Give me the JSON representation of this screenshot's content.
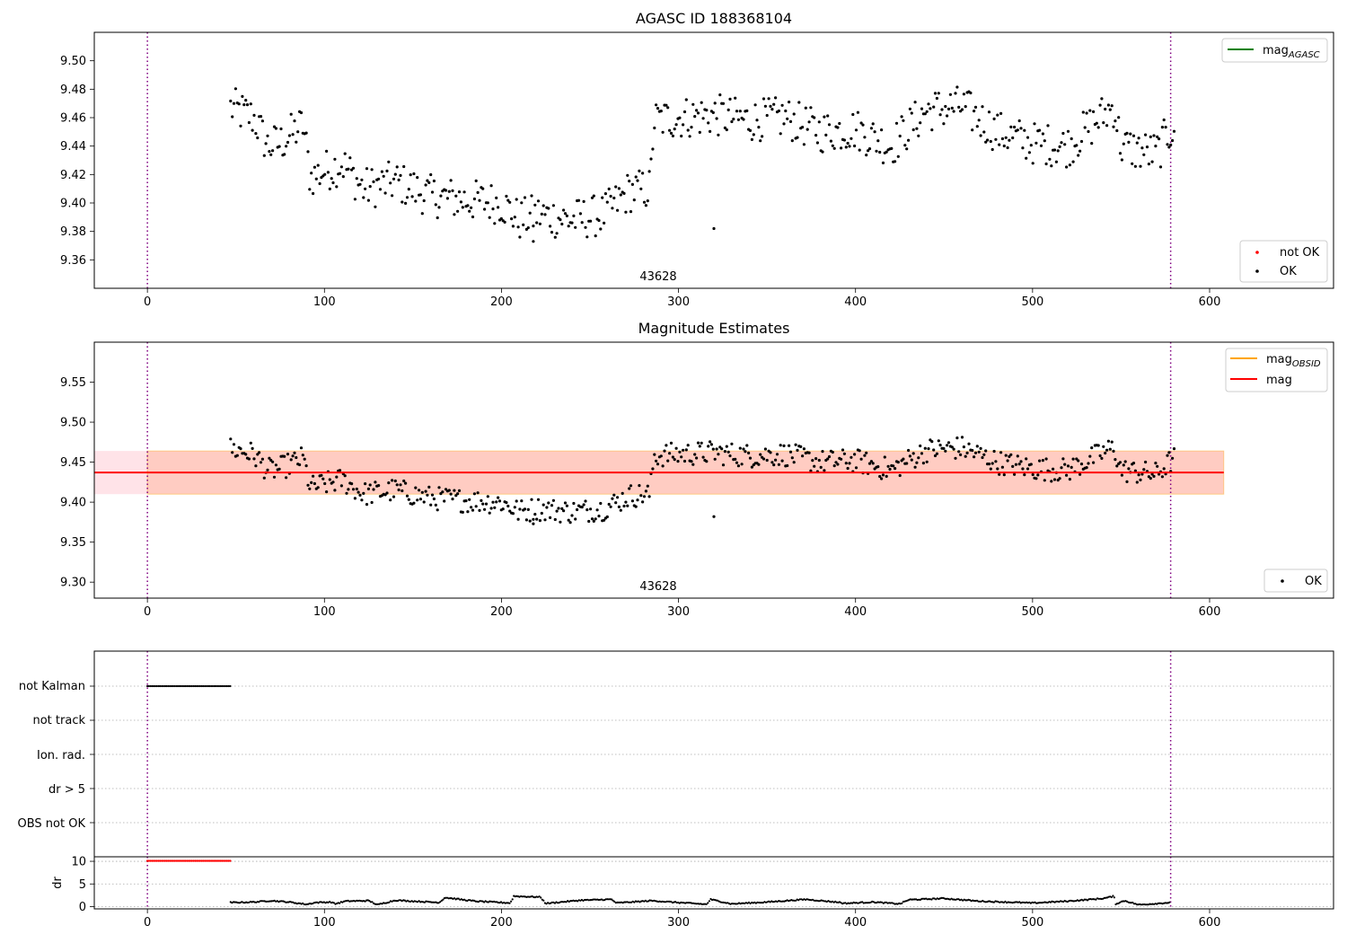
{
  "figure": {
    "panels": {
      "top": {
        "title": "AGASC ID 188368104",
        "annotation": "43628",
        "legend_lines": [
          {
            "base": "mag",
            "sub": "AGASC",
            "color": "#008000"
          }
        ],
        "legend_points": [
          {
            "label": "not OK",
            "color": "#ff0000"
          },
          {
            "label": "OK",
            "color": "#000000"
          }
        ]
      },
      "mid": {
        "title": "Magnitude Estimates",
        "annotation": "43628",
        "legend_lines": [
          {
            "base": "mag",
            "sub": "OBSID",
            "color": "#ffa500"
          },
          {
            "base": "mag",
            "sub": "",
            "color": "#ff0000"
          }
        ],
        "legend_points": [
          {
            "label": "OK",
            "color": "#000000"
          }
        ]
      },
      "flags": {
        "labels": [
          "not Kalman",
          "not track",
          "Ion. rad.",
          "dr > 5",
          "OBS not OK"
        ]
      },
      "dr": {
        "ylabel": "dr"
      }
    }
  },
  "chart_data": [
    {
      "type": "scatter",
      "title": "AGASC ID 188368104",
      "xlim": [
        -30,
        670
      ],
      "ylim": [
        9.34,
        9.52
      ],
      "x_ticks": [
        0,
        100,
        200,
        300,
        400,
        500,
        600
      ],
      "y_ticks": [
        9.36,
        9.38,
        9.4,
        9.42,
        9.44,
        9.46,
        9.48,
        9.5
      ],
      "vlines": [
        0,
        578
      ],
      "legend": [
        "mag_AGASC",
        "not OK",
        "OK"
      ],
      "legend_placement": [
        "upper-right",
        "lower-right"
      ],
      "annotation": {
        "text": "43628",
        "x": 290
      },
      "series": [
        {
          "name": "OK",
          "color": "#000000",
          "segments": [
            [
              47,
              9.467
            ],
            [
              60,
              9.46
            ],
            [
              68,
              9.44
            ],
            [
              75,
              9.442
            ],
            [
              88,
              9.455
            ],
            [
              92,
              9.418
            ],
            [
              110,
              9.428
            ],
            [
              122,
              9.41
            ],
            [
              140,
              9.415
            ],
            [
              160,
              9.405
            ],
            [
              180,
              9.402
            ],
            [
              200,
              9.4
            ],
            [
              210,
              9.388
            ],
            [
              220,
              9.392
            ],
            [
              240,
              9.388
            ],
            [
              258,
              9.392
            ],
            [
              272,
              9.408
            ],
            [
              284,
              9.41
            ],
            [
              286,
              9.458
            ],
            [
              300,
              9.46
            ],
            [
              320,
              9.462
            ],
            [
              340,
              9.458
            ],
            [
              360,
              9.46
            ],
            [
              380,
              9.45
            ],
            [
              400,
              9.452
            ],
            [
              420,
              9.44
            ],
            [
              440,
              9.465
            ],
            [
              460,
              9.468
            ],
            [
              480,
              9.45
            ],
            [
              500,
              9.442
            ],
            [
              520,
              9.44
            ],
            [
              540,
              9.462
            ],
            [
              546,
              9.468
            ],
            [
              550,
              9.44
            ],
            [
              560,
              9.437
            ],
            [
              570,
              9.435
            ],
            [
              580,
              9.455
            ]
          ],
          "outliers": [
            [
              320,
              9.382
            ],
            [
              218,
              9.373
            ]
          ]
        }
      ]
    },
    {
      "type": "scatter",
      "title": "Magnitude Estimates",
      "xlim": [
        -30,
        670
      ],
      "ylim": [
        9.28,
        9.6
      ],
      "x_ticks": [
        0,
        100,
        200,
        300,
        400,
        500,
        600
      ],
      "y_ticks": [
        9.3,
        9.35,
        9.4,
        9.45,
        9.5,
        9.55
      ],
      "vlines": [
        0,
        578
      ],
      "legend": [
        "mag_OBSID",
        "mag",
        "OK"
      ],
      "legend_placement": [
        "upper-right",
        "lower-right"
      ],
      "annotation": {
        "text": "43628",
        "x": 290
      },
      "mag": {
        "value": 9.437,
        "x_range": [
          -30,
          608
        ],
        "color": "#ff0000"
      },
      "mag_band": {
        "lo": 9.41,
        "hi": 9.464,
        "x_range": [
          -30,
          608
        ],
        "color": "#ffc0cb"
      },
      "mag_obsid_band": {
        "lo": 9.41,
        "hi": 9.464,
        "x_range": [
          0,
          608
        ],
        "color": "#ffa07a"
      },
      "series": [
        {
          "name": "OK",
          "color": "#000000",
          "segments": [
            [
              47,
              9.467
            ],
            [
              60,
              9.46
            ],
            [
              68,
              9.44
            ],
            [
              75,
              9.442
            ],
            [
              88,
              9.455
            ],
            [
              92,
              9.418
            ],
            [
              110,
              9.428
            ],
            [
              122,
              9.41
            ],
            [
              140,
              9.415
            ],
            [
              160,
              9.405
            ],
            [
              180,
              9.402
            ],
            [
              200,
              9.4
            ],
            [
              210,
              9.388
            ],
            [
              220,
              9.392
            ],
            [
              240,
              9.388
            ],
            [
              258,
              9.392
            ],
            [
              272,
              9.408
            ],
            [
              284,
              9.41
            ],
            [
              286,
              9.458
            ],
            [
              300,
              9.46
            ],
            [
              320,
              9.462
            ],
            [
              340,
              9.458
            ],
            [
              360,
              9.46
            ],
            [
              380,
              9.45
            ],
            [
              400,
              9.452
            ],
            [
              420,
              9.44
            ],
            [
              440,
              9.465
            ],
            [
              460,
              9.468
            ],
            [
              480,
              9.45
            ],
            [
              500,
              9.442
            ],
            [
              520,
              9.44
            ],
            [
              540,
              9.462
            ],
            [
              546,
              9.468
            ],
            [
              550,
              9.44
            ],
            [
              560,
              9.437
            ],
            [
              570,
              9.435
            ],
            [
              580,
              9.455
            ]
          ],
          "outliers": [
            [
              320,
              9.382
            ],
            [
              218,
              9.373
            ]
          ]
        }
      ]
    },
    {
      "type": "scatter",
      "title": "",
      "xlim": [
        -30,
        670
      ],
      "categories": [
        "not Kalman",
        "not track",
        "Ion. rad.",
        "dr > 5",
        "OBS not OK"
      ],
      "vlines": [
        0,
        578
      ],
      "flag_runs": [
        {
          "category": "not Kalman",
          "x_range": [
            0,
            47
          ],
          "color": "#000000"
        }
      ]
    },
    {
      "type": "scatter",
      "title": "",
      "xlim": [
        -30,
        670
      ],
      "ylim": [
        -0.5,
        11
      ],
      "x_ticks": [
        0,
        100,
        200,
        300,
        400,
        500,
        600
      ],
      "y_ticks": [
        0,
        5,
        10
      ],
      "ylabel": "dr",
      "vlines": [
        0,
        578
      ],
      "series": [
        {
          "name": "",
          "color": "#ff0000",
          "clipped_run": {
            "x_range": [
              0,
              47
            ],
            "y": 10
          }
        },
        {
          "name": "",
          "color": "#000000",
          "segments": [
            [
              47,
              0.9
            ],
            [
              60,
              1.0
            ],
            [
              70,
              1.3
            ],
            [
              80,
              1.0
            ],
            [
              90,
              0.5
            ],
            [
              95,
              0.9
            ],
            [
              104,
              1.0
            ],
            [
              106,
              0.6
            ],
            [
              112,
              1.2
            ],
            [
              125,
              1.3
            ],
            [
              130,
              0.4
            ],
            [
              140,
              1.4
            ],
            [
              150,
              1.2
            ],
            [
              165,
              0.9
            ],
            [
              168,
              2.0
            ],
            [
              185,
              1.2
            ],
            [
              205,
              0.8
            ],
            [
              207,
              2.3
            ],
            [
              222,
              2.1
            ],
            [
              225,
              0.7
            ],
            [
              245,
              1.4
            ],
            [
              262,
              1.6
            ],
            [
              265,
              0.8
            ],
            [
              285,
              1.3
            ],
            [
              300,
              0.9
            ],
            [
              316,
              0.5
            ],
            [
              318,
              1.6
            ],
            [
              330,
              0.6
            ],
            [
              350,
              1.0
            ],
            [
              372,
              1.6
            ],
            [
              392,
              0.9
            ],
            [
              393,
              0.7
            ],
            [
              410,
              1.0
            ],
            [
              425,
              0.6
            ],
            [
              430,
              1.5
            ],
            [
              450,
              1.8
            ],
            [
              470,
              1.2
            ],
            [
              500,
              0.8
            ],
            [
              520,
              1.2
            ],
            [
              540,
              1.8
            ],
            [
              546,
              2.3
            ],
            [
              547,
              0.6
            ],
            [
              552,
              1.3
            ],
            [
              560,
              0.4
            ],
            [
              578,
              0.9
            ]
          ]
        }
      ]
    }
  ]
}
